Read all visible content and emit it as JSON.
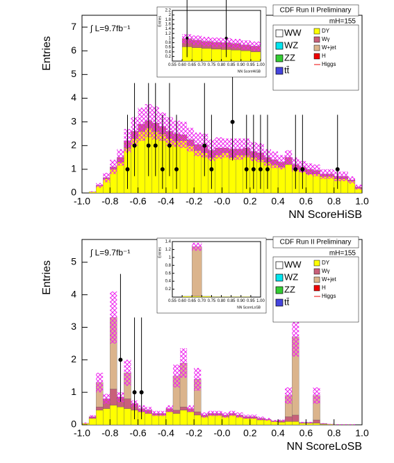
{
  "chart_data": [
    {
      "type": "histogram",
      "title": "CDF Run II Preliminary",
      "mass_label": "mH=155",
      "lumi_label": "∫ L=9.7fb⁻¹",
      "xlabel": "NN ScoreHiSB",
      "ylabel": "Entries",
      "bins": [
        -1,
        -0.95,
        -0.9,
        -0.85,
        -0.8,
        -0.75,
        -0.7,
        -0.65,
        -0.6,
        -0.55,
        -0.5,
        -0.45,
        -0.4,
        -0.35,
        -0.3,
        -0.25,
        -0.2,
        -0.15,
        -0.1,
        -0.05,
        0,
        0.05,
        0.1,
        0.15,
        0.2,
        0.25,
        0.3,
        0.35,
        0.4,
        0.45,
        0.5,
        0.55,
        0.6,
        0.65,
        0.7,
        0.75,
        0.8,
        0.85,
        0.9,
        0.95,
        1
      ],
      "series": [
        {
          "name": "WW",
          "color": "#ffffff"
        },
        {
          "name": "WZ",
          "color": "#00e5ee"
        },
        {
          "name": "ZZ",
          "color": "#33cc33"
        },
        {
          "name": "tt̄",
          "color": "#4444dd"
        },
        {
          "name": "DY",
          "color": "#ffff00",
          "values": [
            0,
            0.05,
            0.3,
            0.6,
            1.0,
            1.3,
            1.9,
            2.3,
            2.6,
            2.75,
            2.6,
            2.5,
            2.3,
            2.2,
            2.2,
            2.0,
            1.8,
            1.7,
            1.5,
            1.6,
            1.7,
            1.5,
            1.6,
            1.6,
            1.5,
            1.4,
            1.3,
            1.2,
            1.1,
            1.2,
            1.0,
            0.9,
            0.8,
            0.8,
            0.7,
            0.7,
            0.6,
            0.6,
            0.5,
            0.2
          ]
        },
        {
          "name": "Wγ",
          "color": "#c8607a",
          "values": [
            0,
            0,
            0.02,
            0.05,
            0.1,
            0.2,
            0.3,
            0.3,
            0.3,
            0.3,
            0.35,
            0.3,
            0.3,
            0.3,
            0.25,
            0.25,
            0.25,
            0.3,
            0.3,
            0.3,
            0.2,
            0.35,
            0.25,
            0.3,
            0.25,
            0.3,
            0.2,
            0.2,
            0.2,
            0.3,
            0.2,
            0.2,
            0.2,
            0.15,
            0.1,
            0.1,
            0.1,
            0.1,
            0.05,
            0.05
          ]
        },
        {
          "name": "W+jet",
          "color": "#dbb48c"
        },
        {
          "name": "H",
          "color": "#ee0000"
        },
        {
          "name": "Higgs",
          "color": "#ee0000",
          "style": "line"
        }
      ],
      "total_errors": [
        0,
        0.02,
        0.1,
        0.2,
        0.3,
        0.35,
        0.5,
        0.6,
        0.7,
        0.7,
        0.7,
        0.6,
        0.6,
        0.55,
        0.55,
        0.5,
        0.5,
        0.5,
        0.45,
        0.45,
        0.4,
        0.45,
        0.45,
        0.4,
        0.4,
        0.4,
        0.35,
        0.35,
        0.3,
        0.3,
        0.3,
        0.25,
        0.25,
        0.25,
        0.2,
        0.2,
        0.2,
        0.2,
        0.15,
        0.1
      ],
      "points": {
        "x": [
          -0.675,
          -0.625,
          -0.525,
          -0.475,
          -0.425,
          -0.375,
          -0.325,
          -0.125,
          -0.075,
          0.075,
          0.175,
          0.225,
          0.275,
          0.325,
          0.525,
          0.575,
          0.825
        ],
        "values": [
          1,
          2,
          2,
          2,
          1,
          2,
          1,
          2,
          1,
          3,
          1,
          1,
          1,
          1,
          1,
          1,
          1
        ],
        "errors_low": [
          0.83,
          1.29,
          1.29,
          1.29,
          0.83,
          1.29,
          0.83,
          1.29,
          0.83,
          1.63,
          0.83,
          0.83,
          0.83,
          0.83,
          0.83,
          0.83,
          0.83
        ],
        "errors_high": [
          2.3,
          2.64,
          2.64,
          2.64,
          2.3,
          2.64,
          2.3,
          2.64,
          2.3,
          2.92,
          2.3,
          2.3,
          2.3,
          2.3,
          2.3,
          2.3,
          2.3
        ]
      },
      "xlim": [
        -1,
        1
      ],
      "ylim": [
        0,
        7.5
      ],
      "xticks": [
        {
          "value": -1,
          "label": "-1.0"
        },
        -0.8,
        -0.6,
        -0.4,
        -0.2,
        {
          "value": 0,
          "label": "-0.0"
        },
        0.2,
        0.4,
        0.6,
        0.8,
        {
          "value": 1,
          "label": "1.0"
        }
      ],
      "yticks": [
        0,
        1,
        2,
        3,
        4,
        5,
        6,
        7
      ]
    },
    {
      "type": "histogram",
      "xlabel": "NN ScoreHiSB",
      "ylabel": "Entries",
      "bins": [
        0.55,
        0.6,
        0.65,
        0.7,
        0.75,
        0.8,
        0.85,
        0.9,
        0.95,
        1
      ],
      "series": [
        {
          "color": "#ffff00",
          "values": [
            0,
            0.62,
            0.58,
            0.55,
            0.52,
            0.5,
            0.48,
            0.45,
            0.4
          ]
        },
        {
          "color": "#c8607a",
          "values": [
            0,
            0.35,
            0.33,
            0.3,
            0.3,
            0.3,
            0.28,
            0.25,
            0.25
          ]
        }
      ],
      "total_errors": [
        0,
        0.2,
        0.2,
        0.2,
        0.2,
        0.2,
        0.2,
        0.2,
        0.2
      ],
      "points": {
        "x": [
          0.625,
          0.825
        ],
        "values": [
          1,
          1
        ],
        "errors_low": [
          0.83,
          0.83
        ],
        "errors_high": [
          2.3,
          2.3
        ]
      },
      "xlim": [
        0.55,
        1
      ],
      "ylim": [
        0,
        2.2
      ],
      "xticks": [
        0.55,
        {
          "value": 0.6,
          "label": "0.60"
        },
        0.65,
        {
          "value": 0.7,
          "label": "0.70"
        },
        0.75,
        {
          "value": 0.8,
          "label": "0.80"
        },
        0.85,
        {
          "value": 0.9,
          "label": "0.90"
        },
        0.95,
        {
          "value": 1,
          "label": "1.00"
        }
      ],
      "yticks": [
        0.2,
        0.4,
        0.6,
        0.8,
        1,
        1.2,
        1.4,
        1.6,
        1.8,
        2,
        2.2
      ]
    },
    {
      "type": "histogram",
      "title": "CDF Run II Preliminary",
      "mass_label": "mH=155",
      "lumi_label": "∫ L=9.7fb⁻¹",
      "xlabel": "NN ScoreLoSB",
      "ylabel": "Entries",
      "bins": [
        -1,
        -0.95,
        -0.9,
        -0.85,
        -0.8,
        -0.75,
        -0.7,
        -0.65,
        -0.6,
        -0.55,
        -0.5,
        -0.45,
        -0.4,
        -0.35,
        -0.3,
        -0.25,
        -0.2,
        -0.15,
        -0.1,
        -0.05,
        0,
        0.05,
        0.1,
        0.15,
        0.2,
        0.25,
        0.3,
        0.35,
        0.4,
        0.45,
        0.5,
        0.55,
        0.6,
        0.65,
        0.7,
        0.75,
        0.8,
        0.85,
        0.9,
        0.95,
        1
      ],
      "series": [
        {
          "name": "WW",
          "color": "#ffffff"
        },
        {
          "name": "WZ",
          "color": "#00e5ee"
        },
        {
          "name": "ZZ",
          "color": "#33cc33"
        },
        {
          "name": "tt̄",
          "color": "#4444dd"
        },
        {
          "name": "DY",
          "color": "#ffff00",
          "values": [
            0.05,
            0.2,
            0.45,
            0.5,
            0.6,
            0.55,
            0.5,
            0.45,
            0.4,
            0.35,
            0.3,
            0.3,
            0.4,
            0.35,
            0.45,
            0.4,
            0.3,
            0.25,
            0.3,
            0.3,
            0.25,
            0.3,
            0.25,
            0.2,
            0.2,
            0.15,
            0.15,
            0.1,
            0.08,
            0.1,
            0.1,
            0.05,
            0.05,
            0.05,
            0.02,
            0.02,
            0.01,
            0.01,
            0.01,
            0
          ]
        },
        {
          "name": "Wγ",
          "color": "#c8607a",
          "values": [
            0,
            0.05,
            0.1,
            0.3,
            0.5,
            0.3,
            0.3,
            0.2,
            0.1,
            0.1,
            0.05,
            0.05,
            0.1,
            0.1,
            0.1,
            0.1,
            0.1,
            0.05,
            0.05,
            0.05,
            0.05,
            0.05,
            0.05,
            0.05,
            0.05,
            0.05,
            0.02,
            0.02,
            0.05,
            0.15,
            0.2,
            0.02,
            0.02,
            0.1,
            0.02,
            0,
            0,
            0,
            0,
            0
          ]
        },
        {
          "name": "W+jet",
          "color": "#dbb48c",
          "values": [
            0,
            0,
            0.75,
            0,
            2.2,
            0,
            0.8,
            0,
            0,
            0,
            0,
            0,
            0,
            1.05,
            1.35,
            0,
            1.0,
            0,
            0,
            0,
            0,
            0,
            0,
            0,
            0,
            0,
            0,
            0,
            0,
            0.65,
            2.4,
            0,
            0,
            0.75,
            0,
            0,
            0,
            0,
            0,
            0
          ]
        },
        {
          "name": "H",
          "color": "#ee0000"
        },
        {
          "name": "Higgs",
          "color": "#ee0000",
          "style": "line"
        }
      ],
      "total_errors": [
        0.02,
        0.05,
        0.3,
        0.15,
        0.8,
        0.15,
        0.4,
        0.1,
        0.1,
        0.1,
        0.08,
        0.08,
        0.1,
        0.35,
        0.45,
        0.1,
        0.35,
        0.08,
        0.08,
        0.08,
        0.08,
        0.08,
        0.08,
        0.06,
        0.06,
        0.05,
        0.04,
        0.03,
        0.03,
        0.25,
        0.6,
        0.02,
        0.02,
        0.25,
        0.01,
        0.01,
        0.01,
        0.01,
        0.01,
        0
      ],
      "points": {
        "x": [
          -0.725,
          -0.625,
          -0.575
        ],
        "values": [
          2,
          1,
          1
        ],
        "errors_low": [
          1.29,
          0.83,
          0.83
        ],
        "errors_high": [
          2.64,
          2.3,
          2.3
        ]
      },
      "xlim": [
        -1,
        1
      ],
      "ylim": [
        0,
        5.7
      ],
      "xticks": [
        {
          "value": -1,
          "label": "-1.0"
        },
        -0.8,
        -0.6,
        -0.4,
        -0.2,
        {
          "value": 0,
          "label": "-0.0"
        },
        0.2,
        0.4,
        0.6,
        0.8,
        {
          "value": 1,
          "label": "1.0"
        }
      ],
      "yticks": [
        0,
        1,
        2,
        3,
        4,
        5
      ]
    },
    {
      "type": "histogram",
      "xlabel": "NN ScoreLoSB",
      "ylabel": "Entries",
      "bins": [
        0.55,
        0.6,
        0.65,
        0.7,
        0.75,
        0.8,
        0.85,
        0.9,
        0.95,
        1
      ],
      "series": [
        {
          "color": "#ffff00",
          "values": [
            0,
            0.02,
            0.02,
            0.02,
            0.01,
            0.01,
            0.01,
            0.01,
            0
          ]
        },
        {
          "color": "#dbb48c",
          "values": [
            0,
            0,
            1.25,
            0,
            0,
            0,
            0,
            0,
            0
          ]
        }
      ],
      "total_errors": [
        0,
        0,
        0.1,
        0,
        0,
        0,
        0,
        0,
        0
      ],
      "xlim": [
        0.55,
        1
      ],
      "ylim": [
        0,
        1.4
      ],
      "xticks": [
        0.55,
        {
          "value": 0.6,
          "label": "0.60"
        },
        0.65,
        {
          "value": 0.7,
          "label": "0.70"
        },
        0.75,
        {
          "value": 0.8,
          "label": "0.80"
        },
        0.85,
        {
          "value": 0.9,
          "label": "0.90"
        },
        0.95,
        {
          "value": 1,
          "label": "1.00"
        }
      ],
      "yticks": [
        0.2,
        0.4,
        0.6,
        0.8,
        1,
        1.2,
        1.4
      ]
    }
  ]
}
